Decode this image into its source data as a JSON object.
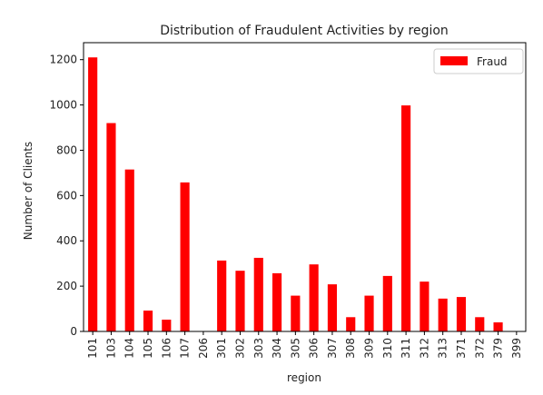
{
  "chart_data": {
    "type": "bar",
    "title": "Distribution of Fraudulent Activities by region",
    "xlabel": "region",
    "ylabel": "Number of Clients",
    "categories": [
      "101",
      "103",
      "104",
      "105",
      "106",
      "107",
      "206",
      "301",
      "302",
      "303",
      "304",
      "305",
      "306",
      "307",
      "308",
      "309",
      "310",
      "311",
      "312",
      "313",
      "371",
      "372",
      "379",
      "399"
    ],
    "series": [
      {
        "name": "Fraud",
        "color": "#ff0000",
        "values": [
          1210,
          920,
          715,
          92,
          52,
          658,
          0,
          313,
          268,
          325,
          257,
          158,
          296,
          208,
          63,
          158,
          245,
          998,
          220,
          145,
          152,
          63,
          40,
          0
        ]
      }
    ],
    "yticks": [
      0,
      200,
      400,
      600,
      800,
      1000,
      1200
    ],
    "ylim": [
      0,
      1275
    ],
    "grid": false,
    "legend_position": "top-right"
  }
}
